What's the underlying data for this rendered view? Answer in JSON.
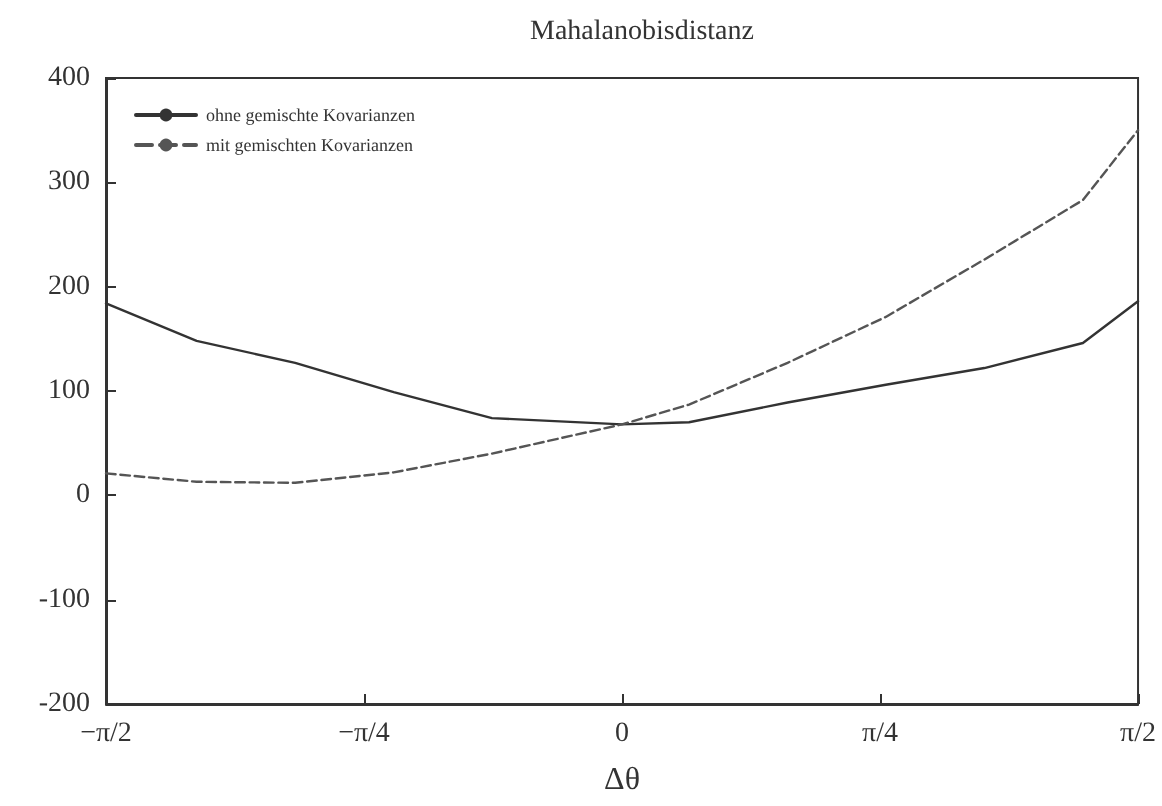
{
  "chart_data": {
    "type": "line",
    "title": "Mahalanobisdistanz",
    "xlabel": "Δθ",
    "xlim": [
      -1.5708,
      1.5708
    ],
    "xticks": [
      {
        "value": -1.5708,
        "label": "−π/2"
      },
      {
        "value": -0.7854,
        "label": "−π/4"
      },
      {
        "value": 0,
        "label": "0"
      },
      {
        "value": 0.7854,
        "label": "π/4"
      },
      {
        "value": 1.5708,
        "label": "π/2"
      }
    ],
    "ylim": [
      -200,
      400
    ],
    "yticks": [
      -200,
      -100,
      0,
      100,
      200,
      300,
      400
    ],
    "x": [
      -1.5708,
      -1.295,
      -0.995,
      -0.695,
      -0.396,
      0,
      0.204,
      0.504,
      0.803,
      1.103,
      1.403,
      1.5708
    ],
    "series": [
      {
        "name": "ohne gemischte Kovarianzen",
        "color": "#333333",
        "line_style": "solid",
        "values": [
          184,
          148,
          127,
          99,
          74,
          68,
          70,
          89,
          106,
          122,
          146,
          186
        ]
      },
      {
        "name": "mit gemischten Kovarianzen",
        "color": "#555555",
        "line_style": "dashed",
        "values": [
          21,
          13,
          12,
          22,
          40,
          68,
          87,
          127,
          171,
          226,
          283,
          350
        ]
      }
    ],
    "legend": "top left",
    "marker": "none",
    "grid": false
  }
}
